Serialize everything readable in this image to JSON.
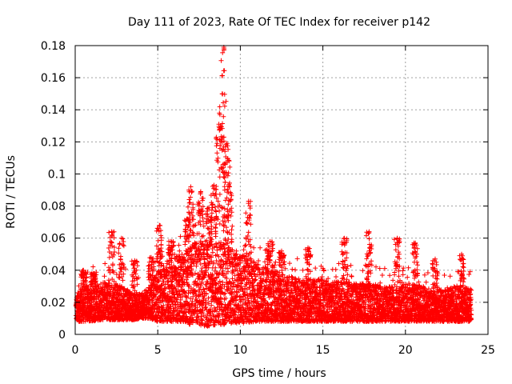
{
  "chart_data": {
    "type": "scatter",
    "title": "Day 111 of 2023, Rate Of TEC Index for receiver p142",
    "xlabel": "GPS time / hours",
    "ylabel": "ROTI / TECUs",
    "xlim": [
      0,
      25
    ],
    "ylim": [
      0,
      0.18
    ],
    "xticks": [
      0,
      5,
      10,
      15,
      20,
      25
    ],
    "xtick_labels": [
      "0",
      "5",
      "10",
      "15",
      "20",
      "25"
    ],
    "yticks": [
      0,
      0.02,
      0.04,
      0.06,
      0.08,
      0.1,
      0.12,
      0.14,
      0.16,
      0.18
    ],
    "ytick_labels": [
      "0",
      "0.02",
      "0.04",
      "0.06",
      "0.08",
      "0.1",
      "0.12",
      "0.14",
      "0.16",
      "0.18"
    ],
    "grid": true,
    "legend": "none",
    "marker": "+",
    "series": [
      {
        "name": "p142",
        "color": "#ff0000",
        "envelope": {
          "x": [
            0,
            0.5,
            1,
            1.5,
            2,
            2.5,
            3,
            3.5,
            4,
            4.5,
            5,
            5.5,
            6,
            6.5,
            7,
            7.5,
            8,
            8.5,
            9,
            9.5,
            10,
            10.5,
            11,
            11.5,
            12,
            12.5,
            13,
            13.5,
            14,
            14.5,
            15,
            15.5,
            16,
            16.5,
            17,
            17.5,
            18,
            18.5,
            19,
            19.5,
            20,
            20.5,
            21,
            21.5,
            22,
            22.5,
            23,
            23.5,
            24
          ],
          "typical_min": [
            0.008,
            0.008,
            0.008,
            0.009,
            0.009,
            0.009,
            0.009,
            0.009,
            0.01,
            0.01,
            0.008,
            0.008,
            0.008,
            0.008,
            0.006,
            0.005,
            0.005,
            0.006,
            0.006,
            0.007,
            0.007,
            0.007,
            0.008,
            0.008,
            0.008,
            0.008,
            0.008,
            0.008,
            0.008,
            0.008,
            0.008,
            0.008,
            0.008,
            0.008,
            0.008,
            0.008,
            0.008,
            0.008,
            0.008,
            0.008,
            0.008,
            0.008,
            0.008,
            0.008,
            0.008,
            0.008,
            0.008,
            0.008,
            0.008
          ],
          "typical_max": [
            0.025,
            0.03,
            0.032,
            0.032,
            0.033,
            0.032,
            0.03,
            0.026,
            0.025,
            0.03,
            0.04,
            0.045,
            0.048,
            0.05,
            0.055,
            0.06,
            0.058,
            0.058,
            0.06,
            0.055,
            0.05,
            0.048,
            0.045,
            0.042,
            0.04,
            0.038,
            0.037,
            0.035,
            0.035,
            0.035,
            0.034,
            0.033,
            0.033,
            0.033,
            0.032,
            0.032,
            0.032,
            0.03,
            0.03,
            0.03,
            0.032,
            0.032,
            0.03,
            0.028,
            0.028,
            0.028,
            0.03,
            0.03,
            0.028
          ]
        },
        "peaks": [
          {
            "x": 0.5,
            "y": 0.04
          },
          {
            "x": 1.1,
            "y": 0.038
          },
          {
            "x": 2.2,
            "y": 0.064
          },
          {
            "x": 2.8,
            "y": 0.06
          },
          {
            "x": 3.6,
            "y": 0.046
          },
          {
            "x": 4.6,
            "y": 0.048
          },
          {
            "x": 5.1,
            "y": 0.068
          },
          {
            "x": 5.8,
            "y": 0.058
          },
          {
            "x": 6.8,
            "y": 0.072
          },
          {
            "x": 7.0,
            "y": 0.092
          },
          {
            "x": 7.6,
            "y": 0.089
          },
          {
            "x": 8.1,
            "y": 0.079
          },
          {
            "x": 8.4,
            "y": 0.093
          },
          {
            "x": 8.7,
            "y": 0.131
          },
          {
            "x": 8.9,
            "y": 0.15
          },
          {
            "x": 9.0,
            "y": 0.179
          },
          {
            "x": 9.2,
            "y": 0.119
          },
          {
            "x": 9.35,
            "y": 0.092
          },
          {
            "x": 10.5,
            "y": 0.083
          },
          {
            "x": 11.8,
            "y": 0.058
          },
          {
            "x": 12.5,
            "y": 0.052
          },
          {
            "x": 14.1,
            "y": 0.054
          },
          {
            "x": 16.3,
            "y": 0.06
          },
          {
            "x": 17.8,
            "y": 0.064
          },
          {
            "x": 19.5,
            "y": 0.06
          },
          {
            "x": 20.6,
            "y": 0.057
          },
          {
            "x": 21.8,
            "y": 0.047
          },
          {
            "x": 23.4,
            "y": 0.05
          }
        ]
      }
    ]
  }
}
